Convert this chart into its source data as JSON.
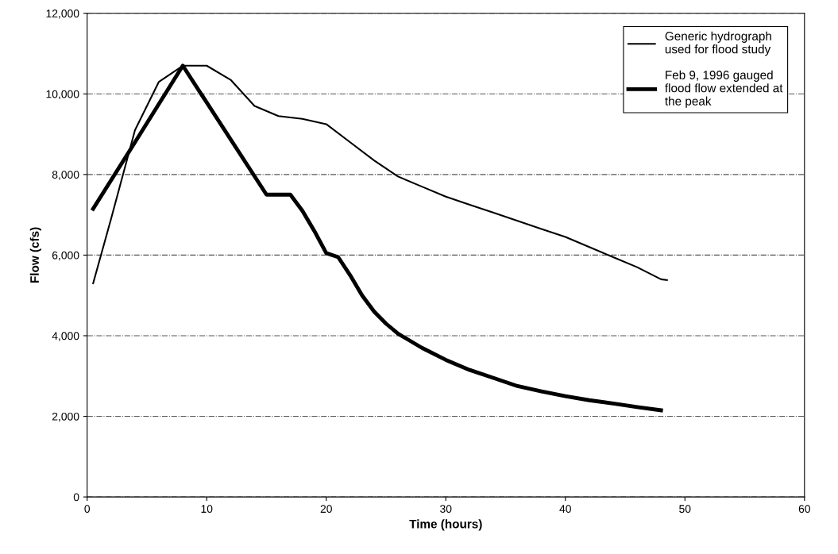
{
  "chart_data": {
    "type": "line",
    "xlabel": "Time (hours)",
    "ylabel": "Flow (cfs)",
    "xlim": [
      0,
      60
    ],
    "xticks": [
      0,
      10,
      20,
      30,
      40,
      50,
      60
    ],
    "ylim": [
      0,
      12000
    ],
    "yticks": [
      {
        "value": 0,
        "label": "0"
      },
      {
        "value": 2000,
        "label": "2,000"
      },
      {
        "value": 4000,
        "label": "4,000"
      },
      {
        "value": 6000,
        "label": "6,000"
      },
      {
        "value": 8000,
        "label": "8,000"
      },
      {
        "value": 10000,
        "label": "10,000"
      },
      {
        "value": 12000,
        "label": "12,000"
      }
    ],
    "grid": "y",
    "legend": "top right",
    "marker": "none",
    "series": [
      {
        "name": "Generic hydrograph used for flood study",
        "color": "#000000",
        "x": [
          0.5,
          2,
          4,
          6,
          8,
          10,
          12,
          14,
          16,
          18,
          20,
          22,
          24,
          26,
          28,
          30,
          32,
          34,
          36,
          38,
          40,
          42,
          44,
          46,
          48,
          48.5
        ],
        "values": [
          5300,
          6900,
          9100,
          10300,
          10700,
          10700,
          10350,
          9700,
          9450,
          9380,
          9250,
          8800,
          8350,
          7950,
          7700,
          7450,
          7250,
          7050,
          6850,
          6650,
          6450,
          6200,
          5950,
          5700,
          5400,
          5380
        ]
      },
      {
        "name": "Feb 9, 1996 gauged flood flow extended at the peak",
        "color": "#000000",
        "x": [
          0.5,
          4,
          8,
          15,
          17,
          18,
          19,
          20,
          21,
          22,
          23,
          24,
          25,
          26,
          28,
          30,
          32,
          34,
          36,
          38,
          40,
          42,
          44,
          46,
          48
        ],
        "values": [
          7150,
          8800,
          10700,
          7500,
          7500,
          7100,
          6600,
          6050,
          5950,
          5500,
          5000,
          4600,
          4300,
          4050,
          3700,
          3400,
          3150,
          2950,
          2750,
          2620,
          2500,
          2400,
          2320,
          2230,
          2150
        ]
      }
    ]
  }
}
